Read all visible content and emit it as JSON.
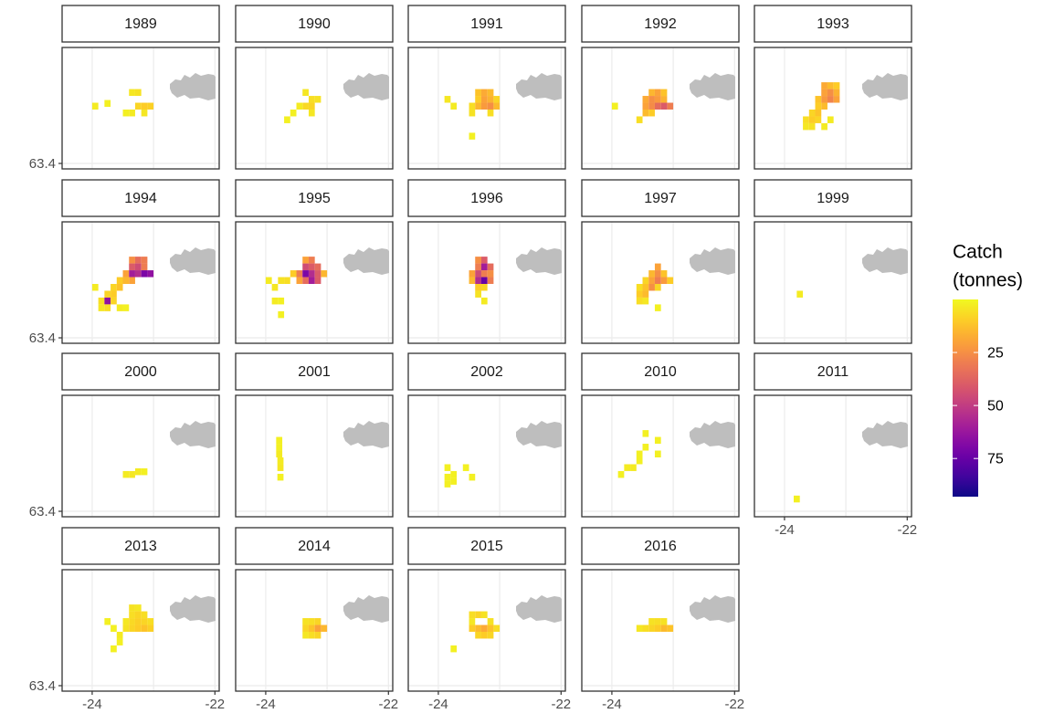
{
  "chart_data": {
    "type": "faceted_tile_map",
    "xlim": [
      -24.49,
      -21.93
    ],
    "ylim": [
      63.36,
      64.25
    ],
    "xticks": [
      -24,
      -22
    ],
    "xminor": [
      -23
    ],
    "yticks": [
      63.4
    ],
    "clim": [
      0,
      93
    ],
    "colormap": "plasma",
    "reverse_colors": true,
    "legend_title": [
      "Catch",
      "(tonnes)"
    ],
    "legend_ticks": [
      25,
      50,
      75
    ],
    "panels": [
      {
        "title": "1989",
        "x": [
          -23.95,
          -23.75,
          -23.35,
          -23.25,
          -23.25,
          -23.15,
          -23.05,
          -23.35,
          -23.15,
          -23.45
        ],
        "y": [
          63.82,
          63.84,
          63.92,
          63.92,
          63.82,
          63.82,
          63.82,
          63.77,
          63.77,
          63.77
        ],
        "values": [
          3,
          2,
          4,
          5,
          8,
          10,
          9,
          3,
          4,
          2
        ]
      },
      {
        "title": "1990",
        "x": [
          -23.35,
          -23.25,
          -23.15,
          -23.35,
          -23.25,
          -23.45,
          -23.25,
          -23.55,
          -23.65
        ],
        "y": [
          63.92,
          63.87,
          63.87,
          63.82,
          63.82,
          63.82,
          63.77,
          63.77,
          63.72
        ],
        "values": [
          4,
          6,
          5,
          7,
          8,
          3,
          4,
          2,
          2
        ]
      },
      {
        "title": "1991",
        "x": [
          -23.35,
          -23.25,
          -23.15,
          -23.35,
          -23.25,
          -23.15,
          -23.05,
          -23.45,
          -23.35,
          -23.25,
          -23.15,
          -23.05,
          -23.85,
          -23.75,
          -23.45,
          -23.15,
          -23.45
        ],
        "y": [
          63.92,
          63.92,
          63.92,
          63.87,
          63.87,
          63.87,
          63.87,
          63.82,
          63.82,
          63.82,
          63.82,
          63.82,
          63.87,
          63.82,
          63.77,
          63.77,
          63.6
        ],
        "values": [
          12,
          18,
          14,
          10,
          20,
          16,
          8,
          6,
          15,
          22,
          25,
          14,
          4,
          3,
          5,
          6,
          2
        ]
      },
      {
        "title": "1992",
        "x": [
          -23.35,
          -23.25,
          -23.15,
          -23.45,
          -23.35,
          -23.25,
          -23.15,
          -23.05,
          -23.45,
          -23.35,
          -23.25,
          -23.15,
          -23.45,
          -23.35,
          -23.55,
          -23.95
        ],
        "y": [
          63.92,
          63.92,
          63.92,
          63.87,
          63.87,
          63.87,
          63.87,
          63.82,
          63.82,
          63.82,
          63.82,
          63.82,
          63.77,
          63.77,
          63.72,
          63.82
        ],
        "values": [
          15,
          20,
          12,
          18,
          25,
          22,
          16,
          30,
          20,
          26,
          35,
          40,
          14,
          10,
          6,
          2
        ]
      },
      {
        "title": "1993",
        "x": [
          -23.35,
          -23.25,
          -23.15,
          -23.35,
          -23.25,
          -23.15,
          -23.45,
          -23.35,
          -23.25,
          -23.15,
          -23.45,
          -23.35,
          -23.55,
          -23.45,
          -23.65,
          -23.55,
          -23.45,
          -23.65,
          -23.55,
          -23.35,
          -23.25
        ],
        "y": [
          63.97,
          63.97,
          63.97,
          63.92,
          63.92,
          63.92,
          63.87,
          63.87,
          63.87,
          63.87,
          63.82,
          63.82,
          63.77,
          63.77,
          63.72,
          63.72,
          63.72,
          63.67,
          63.67,
          63.67,
          63.72
        ],
        "values": [
          18,
          14,
          10,
          20,
          25,
          16,
          12,
          22,
          28,
          20,
          10,
          14,
          8,
          12,
          6,
          10,
          8,
          4,
          5,
          3,
          3
        ]
      },
      {
        "title": "1994",
        "x": [
          -23.35,
          -23.25,
          -23.15,
          -23.35,
          -23.25,
          -23.15,
          -23.45,
          -23.35,
          -23.25,
          -23.15,
          -23.05,
          -23.55,
          -23.45,
          -23.35,
          -23.65,
          -23.55,
          -23.75,
          -23.65,
          -23.85,
          -23.75,
          -23.65,
          -23.85,
          -23.75,
          -23.55,
          -23.45,
          -23.95
        ],
        "y": [
          63.97,
          63.97,
          63.97,
          63.92,
          63.92,
          63.92,
          63.87,
          63.87,
          63.87,
          63.87,
          63.87,
          63.82,
          63.82,
          63.82,
          63.77,
          63.77,
          63.72,
          63.72,
          63.67,
          63.67,
          63.67,
          63.62,
          63.62,
          63.62,
          63.62,
          63.77
        ],
        "values": [
          25,
          35,
          30,
          40,
          45,
          30,
          20,
          60,
          55,
          70,
          65,
          10,
          15,
          20,
          8,
          12,
          8,
          10,
          6,
          65,
          8,
          4,
          6,
          3,
          2,
          3
        ]
      },
      {
        "title": "1995",
        "x": [
          -23.35,
          -23.25,
          -23.35,
          -23.25,
          -23.15,
          -23.45,
          -23.35,
          -23.25,
          -23.15,
          -23.05,
          -23.45,
          -23.35,
          -23.25,
          -23.15,
          -23.55,
          -23.65,
          -23.75,
          -23.85,
          -23.95,
          -23.85,
          -23.75,
          -23.75
        ],
        "y": [
          63.97,
          63.97,
          63.92,
          63.92,
          63.92,
          63.87,
          63.87,
          63.87,
          63.87,
          63.87,
          63.82,
          63.82,
          63.82,
          63.82,
          63.87,
          63.82,
          63.82,
          63.77,
          63.82,
          63.67,
          63.67,
          63.57
        ],
        "values": [
          20,
          30,
          45,
          40,
          35,
          30,
          70,
          55,
          40,
          15,
          20,
          35,
          60,
          40,
          10,
          6,
          5,
          4,
          3,
          3,
          2,
          2
        ]
      },
      {
        "title": "1996",
        "x": [
          -23.35,
          -23.25,
          -23.35,
          -23.25,
          -23.15,
          -23.45,
          -23.35,
          -23.25,
          -23.15,
          -23.45,
          -23.35,
          -23.25,
          -23.15,
          -23.35,
          -23.25,
          -23.35,
          -23.25
        ],
        "y": [
          63.97,
          63.97,
          63.92,
          63.92,
          63.92,
          63.87,
          63.87,
          63.87,
          63.87,
          63.82,
          63.82,
          63.82,
          63.82,
          63.77,
          63.77,
          63.72,
          63.67
        ],
        "values": [
          25,
          40,
          30,
          60,
          35,
          20,
          45,
          30,
          25,
          15,
          55,
          75,
          30,
          10,
          8,
          5,
          3
        ]
      },
      {
        "title": "1997",
        "x": [
          -23.25,
          -23.35,
          -23.25,
          -23.15,
          -23.45,
          -23.35,
          -23.25,
          -23.15,
          -23.05,
          -23.55,
          -23.45,
          -23.35,
          -23.25,
          -23.55,
          -23.45,
          -23.55,
          -23.45,
          -23.25
        ],
        "y": [
          63.92,
          63.87,
          63.87,
          63.87,
          63.82,
          63.82,
          63.82,
          63.82,
          63.82,
          63.77,
          63.77,
          63.77,
          63.77,
          63.72,
          63.72,
          63.67,
          63.67,
          63.62
        ],
        "values": [
          20,
          15,
          25,
          12,
          8,
          20,
          30,
          22,
          10,
          6,
          12,
          25,
          8,
          10,
          14,
          6,
          4,
          2
        ]
      },
      {
        "title": "1999",
        "x": [
          -23.75
        ],
        "y": [
          63.72
        ],
        "values": [
          3
        ]
      },
      {
        "title": "2000",
        "x": [
          -23.45,
          -23.35,
          -23.25,
          -23.15
        ],
        "y": [
          63.67,
          63.67,
          63.69,
          63.69
        ],
        "values": [
          3,
          4,
          3,
          2
        ]
      },
      {
        "title": "2001",
        "x": [
          -23.78,
          -23.78,
          -23.78,
          -23.76,
          -23.76,
          -23.76
        ],
        "y": [
          63.92,
          63.87,
          63.82,
          63.77,
          63.72,
          63.65
        ],
        "values": [
          2,
          2,
          3,
          3,
          4,
          2
        ]
      },
      {
        "title": "2002",
        "x": [
          -23.85,
          -23.75,
          -23.75,
          -23.85,
          -23.55,
          -23.45,
          -23.85
        ],
        "y": [
          63.72,
          63.67,
          63.62,
          63.65,
          63.72,
          63.65,
          63.6
        ],
        "values": [
          2,
          2,
          2,
          2,
          2,
          2,
          2
        ]
      },
      {
        "title": "2010",
        "x": [
          -23.45,
          -23.25,
          -23.45,
          -23.25,
          -23.55,
          -23.65,
          -23.75,
          -23.85,
          -23.55
        ],
        "y": [
          63.97,
          63.92,
          63.87,
          63.82,
          63.82,
          63.72,
          63.72,
          63.67,
          63.77
        ],
        "values": [
          2,
          2,
          2,
          2,
          2,
          3,
          3,
          2,
          2
        ]
      },
      {
        "title": "2011",
        "x": [
          -23.8
        ],
        "y": [
          63.49
        ],
        "values": [
          2
        ]
      },
      {
        "title": "2013",
        "x": [
          -23.35,
          -23.25,
          -23.35,
          -23.25,
          -23.15,
          -23.45,
          -23.35,
          -23.25,
          -23.15,
          -23.05,
          -23.45,
          -23.35,
          -23.25,
          -23.15,
          -23.05,
          -23.75,
          -23.65,
          -23.55,
          -23.55,
          -23.65
        ],
        "y": [
          63.97,
          63.97,
          63.92,
          63.92,
          63.92,
          63.87,
          63.87,
          63.87,
          63.87,
          63.87,
          63.82,
          63.82,
          63.82,
          63.82,
          63.82,
          63.87,
          63.82,
          63.77,
          63.72,
          63.67
        ],
        "values": [
          5,
          4,
          6,
          8,
          6,
          4,
          7,
          9,
          8,
          6,
          5,
          8,
          10,
          12,
          9,
          2,
          2,
          3,
          2,
          2
        ]
      },
      {
        "title": "2014",
        "x": [
          -23.35,
          -23.25,
          -23.15,
          -23.35,
          -23.25,
          -23.15,
          -23.05,
          -23.35,
          -23.25,
          -23.15
        ],
        "y": [
          63.87,
          63.87,
          63.87,
          63.82,
          63.82,
          63.82,
          63.82,
          63.77,
          63.77,
          63.77
        ],
        "values": [
          5,
          6,
          8,
          8,
          12,
          20,
          15,
          4,
          6,
          8
        ]
      },
      {
        "title": "2015",
        "x": [
          -23.45,
          -23.35,
          -23.25,
          -23.45,
          -23.15,
          -23.45,
          -23.35,
          -23.25,
          -23.15,
          -23.05,
          -23.35,
          -23.25,
          -23.15,
          -23.75
        ],
        "y": [
          63.92,
          63.92,
          63.92,
          63.87,
          63.87,
          63.82,
          63.82,
          63.82,
          63.82,
          63.82,
          63.77,
          63.77,
          63.77,
          63.67
        ],
        "values": [
          6,
          8,
          5,
          4,
          5,
          10,
          14,
          18,
          12,
          6,
          8,
          10,
          8,
          2
        ]
      },
      {
        "title": "2016",
        "x": [
          -23.55,
          -23.45,
          -23.35,
          -23.25,
          -23.15,
          -23.05,
          -23.35,
          -23.25,
          -23.15
        ],
        "y": [
          63.82,
          63.82,
          63.82,
          63.82,
          63.82,
          63.82,
          63.87,
          63.87,
          63.87
        ],
        "values": [
          4,
          6,
          8,
          10,
          14,
          12,
          5,
          6,
          5
        ]
      }
    ]
  }
}
